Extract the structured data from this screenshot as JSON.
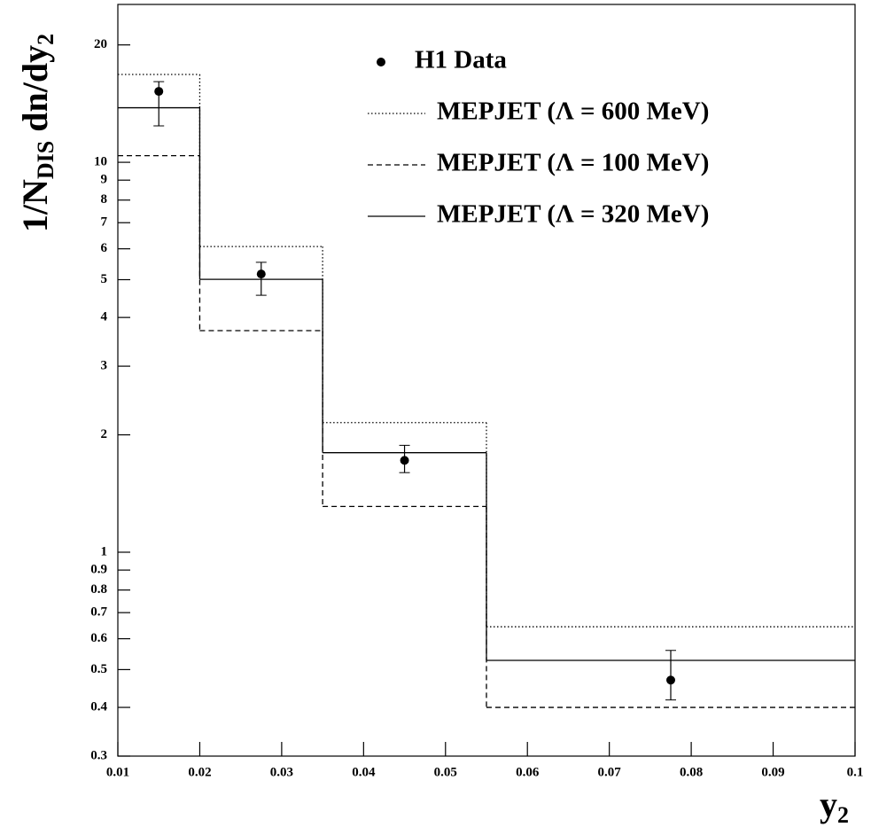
{
  "chart_data": {
    "type": "histogram",
    "ylabel": [
      "1/N",
      "DIS",
      " dn/dy",
      "2"
    ],
    "xlabel": [
      "y",
      "2"
    ],
    "bins": [
      0.01,
      0.02,
      0.035,
      0.055,
      0.1
    ],
    "series": [
      {
        "name": "MEPJET (Λ = 600 MeV)",
        "style": "dotted",
        "color": "#000000",
        "values": [
          16.8,
          6.08,
          2.15,
          0.644
        ]
      },
      {
        "name": "MEPJET (Λ = 100 MeV)",
        "style": "dashed",
        "color": "#000000",
        "values": [
          10.4,
          3.7,
          1.31,
          0.4
        ]
      },
      {
        "name": "MEPJET (Λ = 320 MeV)",
        "style": "solid",
        "color": "#000000",
        "values": [
          13.8,
          5.01,
          1.8,
          0.528
        ]
      }
    ],
    "points": {
      "name": "H1 Data",
      "color": "#000000",
      "x": [
        0.015,
        0.0275,
        0.045,
        0.0775
      ],
      "values": [
        15.2,
        5.17,
        1.72,
        0.47
      ],
      "lower": [
        12.4,
        4.56,
        1.6,
        0.418
      ],
      "upper": [
        16.1,
        5.54,
        1.88,
        0.56
      ]
    },
    "xlim": [
      0.01,
      0.1
    ],
    "ylim": [
      0.3,
      25.4
    ],
    "log_y": true,
    "xticks": [
      0.01,
      0.02,
      0.03,
      0.04,
      0.05,
      0.06,
      0.07,
      0.08,
      0.09,
      0.1
    ],
    "yticks": [
      0.3,
      0.4,
      0.5,
      0.6,
      0.7,
      0.8,
      0.9,
      1,
      2,
      3,
      4,
      5,
      6,
      7,
      8,
      9,
      10,
      20
    ]
  }
}
